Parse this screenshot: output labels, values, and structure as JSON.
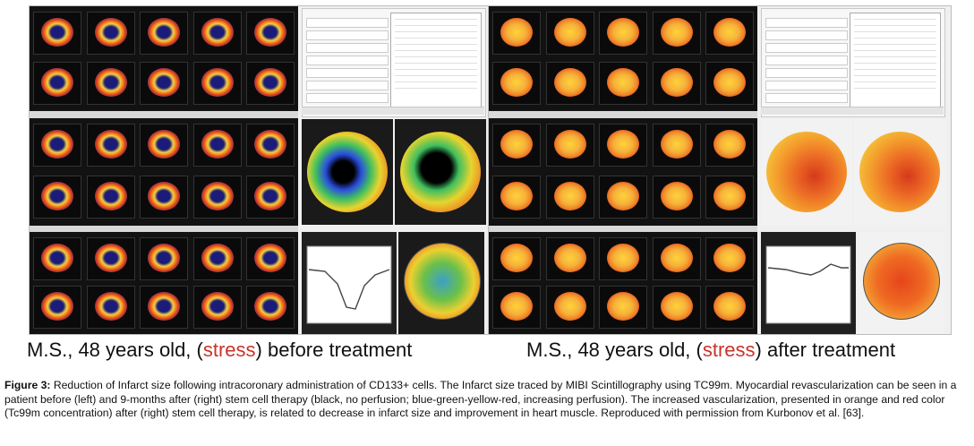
{
  "figure": {
    "left_label": {
      "prefix": "M.S., 48 years old, (",
      "stress": "stress",
      "suffix": ") before treatment"
    },
    "right_label": {
      "prefix": "M.S., 48 years old, (",
      "stress": "stress",
      "suffix": ") after treatment"
    },
    "colors": {
      "stress_highlight": "#c9332a",
      "scan_background": "#121212"
    }
  },
  "caption": {
    "label": "Figure 3:",
    "text": " Reduction of Infarct size following intracoronary administration of CD133+ cells. The Infarct size traced by MIBI Scintillography using TC99m. Myocardial revascularization can be seen in a patient before (left) and 9-months after (right) stem cell therapy (black, no perfusion; blue-green-yellow-red, increasing perfusion). The increased vascularization, presented in orange and red color (Tc99m concentration) after (right) stem cell therapy, is related to decrease in infarct size and improvement in heart muscle. Reproduced with permission from Kurbonov et al. [63]."
  }
}
